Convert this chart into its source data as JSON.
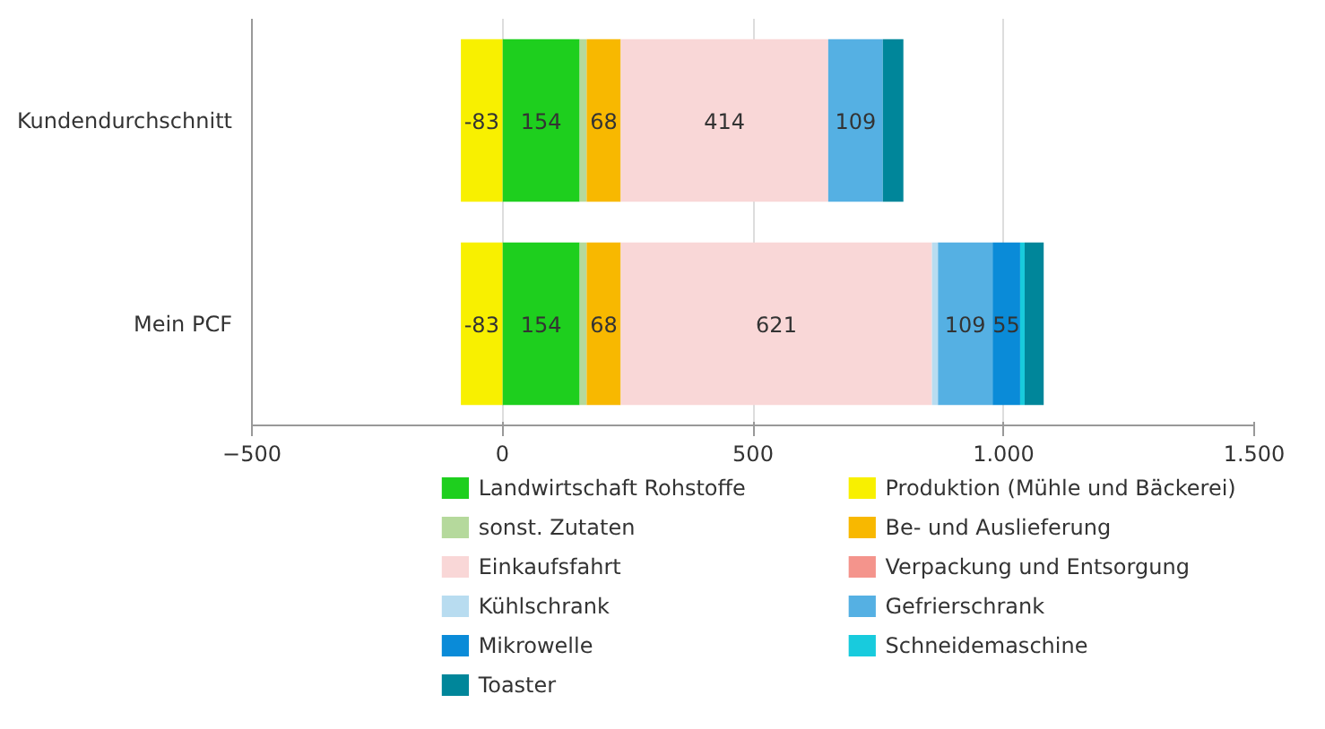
{
  "chart_data": {
    "type": "bar",
    "orientation": "horizontal",
    "stacked": true,
    "categories": [
      "Kundendurchschnitt",
      "Mein PCF"
    ],
    "series": [
      {
        "name": "Landwirtschaft Rohstoffe",
        "color": "#1ecf1e",
        "values": [
          154,
          154
        ],
        "value_labels": [
          "154",
          "154"
        ]
      },
      {
        "name": "Produktion (Mühle und Bäckerei)",
        "color": "#f8f000",
        "values": [
          -83,
          -83
        ],
        "value_labels": [
          "-83",
          "-83"
        ]
      },
      {
        "name": "sonst. Zutaten",
        "color": "#b5d99c",
        "values": [
          14,
          14
        ],
        "value_labels": [
          null,
          null
        ]
      },
      {
        "name": "Be- und Auslieferung",
        "color": "#f8b800",
        "values": [
          68,
          68
        ],
        "value_labels": [
          "68",
          "68"
        ]
      },
      {
        "name": "Einkaufsfahrt",
        "color": "#f9d7d7",
        "values": [
          414,
          621
        ],
        "value_labels": [
          "414",
          "621"
        ]
      },
      {
        "name": "Verpackung und Entsorgung",
        "color": "#f4948c",
        "values": [
          0,
          0
        ],
        "value_labels": [
          null,
          null
        ]
      },
      {
        "name": "Kühlschrank",
        "color": "#b8dcf0",
        "values": [
          0,
          12
        ],
        "value_labels": [
          null,
          null
        ]
      },
      {
        "name": "Gefrierschrank",
        "color": "#55b0e3",
        "values": [
          109,
          109
        ],
        "value_labels": [
          "109",
          "109"
        ]
      },
      {
        "name": "Mikrowelle",
        "color": "#0a8bd8",
        "values": [
          0,
          55
        ],
        "value_labels": [
          null,
          "55"
        ]
      },
      {
        "name": "Schneidemaschine",
        "color": "#18cbdd",
        "values": [
          0,
          9
        ],
        "value_labels": [
          null,
          null
        ]
      },
      {
        "name": "Toaster",
        "color": "#00869a",
        "values": [
          41,
          38
        ],
        "value_labels": [
          null,
          null
        ]
      }
    ],
    "xlim": [
      -500,
      1500
    ],
    "xticks": [
      -500,
      0,
      500,
      {
        "value": 1000,
        "label": "1.000"
      },
      {
        "value": 1500,
        "label": "1.500"
      }
    ],
    "grid": "x",
    "legend": "bottom"
  }
}
